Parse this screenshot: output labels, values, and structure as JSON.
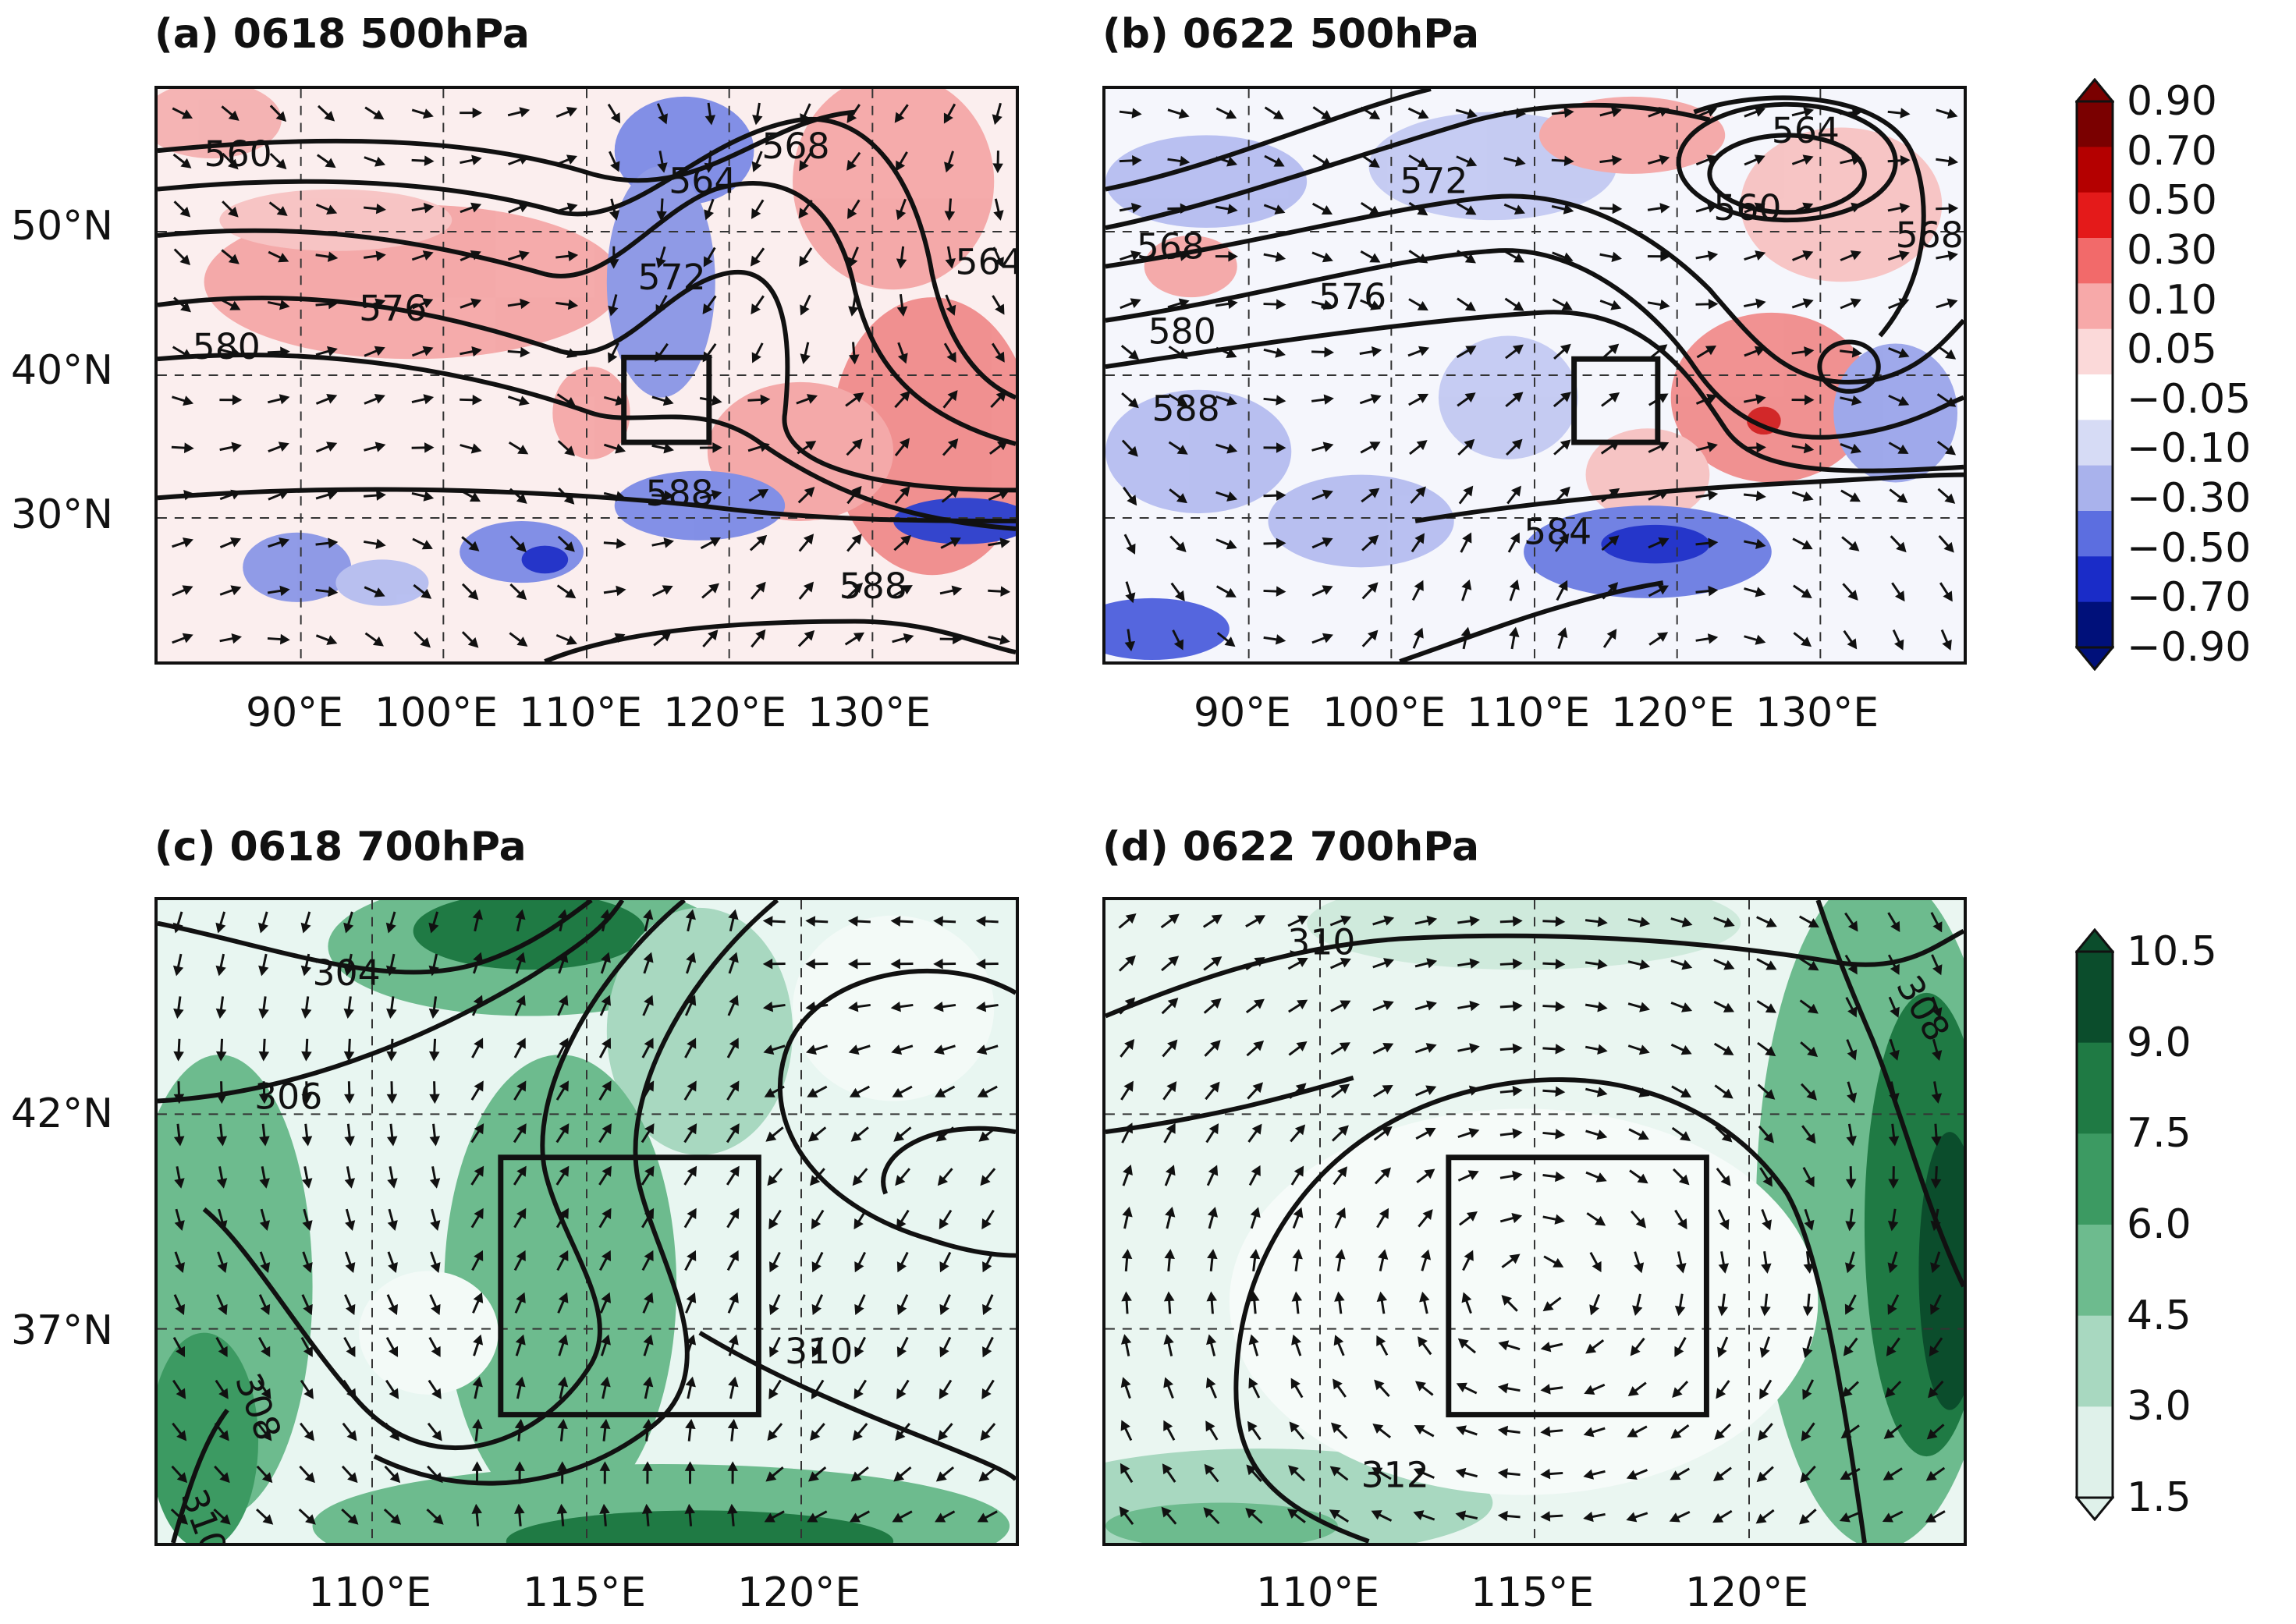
{
  "panels": [
    {
      "title": "(a) 0618 500hPa",
      "x_ticks": [
        "90°E",
        "100°E",
        "110°E",
        "120°E",
        "130°E"
      ],
      "y_ticks": [
        "50°N",
        "40°N",
        "30°N"
      ],
      "contour_labels": [
        "560",
        "564",
        "568",
        "564",
        "572",
        "576",
        "580",
        "588",
        "588",
        "588"
      ]
    },
    {
      "title": "(b) 0622 500hPa",
      "x_ticks": [
        "90°E",
        "100°E",
        "110°E",
        "120°E",
        "130°E"
      ],
      "y_ticks": [],
      "contour_labels": [
        "568",
        "572",
        "564",
        "560",
        "568",
        "576",
        "580",
        "588",
        "584",
        "588",
        "564"
      ]
    },
    {
      "title": "(c) 0618 700hPa",
      "x_ticks": [
        "110°E",
        "115°E",
        "120°E"
      ],
      "y_ticks": [
        "42°N",
        "37°N"
      ],
      "contour_labels": [
        "304",
        "306",
        "308",
        "310",
        "310"
      ]
    },
    {
      "title": "(d) 0622 700hPa",
      "x_ticks": [
        "110°E",
        "115°E",
        "120°E"
      ],
      "y_ticks": [],
      "contour_labels": [
        "310",
        "308",
        "312"
      ]
    }
  ],
  "colorbars": [
    {
      "labels": [
        "0.90",
        "0.70",
        "0.50",
        "0.30",
        "0.10",
        "0.05",
        "−0.05",
        "−0.10",
        "−0.30",
        "−0.50",
        "−0.70",
        "−0.90"
      ],
      "colors": [
        "#7a0000",
        "#b40000",
        "#e41a1a",
        "#f26a6a",
        "#f7a9a9",
        "#fbd9d9",
        "#ffffff",
        "#d6dbf5",
        "#a9b2ec",
        "#5c6ee0",
        "#1a2cc8",
        "#00107a"
      ]
    },
    {
      "labels": [
        "10.5",
        "9.0",
        "7.5",
        "6.0",
        "4.5",
        "3.0",
        "1.5"
      ],
      "colors": [
        "#0b4d2c",
        "#1f7a44",
        "#3c9a62",
        "#6dbb8e",
        "#a8d8c0",
        "#dff1ea"
      ]
    }
  ],
  "chart_data": [
    {
      "type": "heatmap",
      "title": "(a) 0618 500hPa",
      "xlabel": "",
      "ylabel": "",
      "xlim": [
        82,
        142
      ],
      "ylim": [
        20,
        60
      ],
      "x_ticks": [
        90,
        100,
        110,
        120,
        130
      ],
      "y_ticks": [
        30,
        40,
        50
      ],
      "contour_levels_labeled": [
        560,
        564,
        568,
        572,
        576,
        580,
        588
      ],
      "box": {
        "lon": [
          115,
          121
        ],
        "lat": [
          35,
          41
        ]
      },
      "shading_range": [
        -0.9,
        0.9
      ],
      "overlay": "wind vectors"
    },
    {
      "type": "heatmap",
      "title": "(b) 0622 500hPa",
      "xlabel": "",
      "ylabel": "",
      "xlim": [
        82,
        142
      ],
      "ylim": [
        20,
        60
      ],
      "x_ticks": [
        90,
        100,
        110,
        120,
        130
      ],
      "y_ticks": [
        30,
        40,
        50
      ],
      "contour_levels_labeled": [
        560,
        564,
        568,
        572,
        576,
        580,
        584,
        588
      ],
      "box": {
        "lon": [
          115,
          121
        ],
        "lat": [
          35,
          41
        ]
      },
      "shading_range": [
        -0.9,
        0.9
      ],
      "overlay": "wind vectors"
    },
    {
      "type": "heatmap",
      "title": "(c) 0618 700hPa",
      "xlabel": "",
      "ylabel": "",
      "xlim": [
        105,
        125
      ],
      "ylim": [
        32,
        47
      ],
      "x_ticks": [
        110,
        115,
        120
      ],
      "y_ticks": [
        37,
        42
      ],
      "contour_levels_labeled": [
        304,
        306,
        308,
        310
      ],
      "box": {
        "lon": [
          113,
          119
        ],
        "lat": [
          35,
          41
        ]
      },
      "shading_range": [
        1.5,
        10.5
      ],
      "overlay": "wind vectors"
    },
    {
      "type": "heatmap",
      "title": "(d) 0622 700hPa",
      "xlabel": "",
      "ylabel": "",
      "xlim": [
        105,
        125
      ],
      "ylim": [
        32,
        47
      ],
      "x_ticks": [
        110,
        115,
        120
      ],
      "y_ticks": [
        37,
        42
      ],
      "contour_levels_labeled": [
        308,
        310,
        312
      ],
      "box": {
        "lon": [
          113,
          119
        ],
        "lat": [
          35,
          41
        ]
      },
      "shading_range": [
        1.5,
        10.5
      ],
      "overlay": "wind vectors"
    }
  ]
}
